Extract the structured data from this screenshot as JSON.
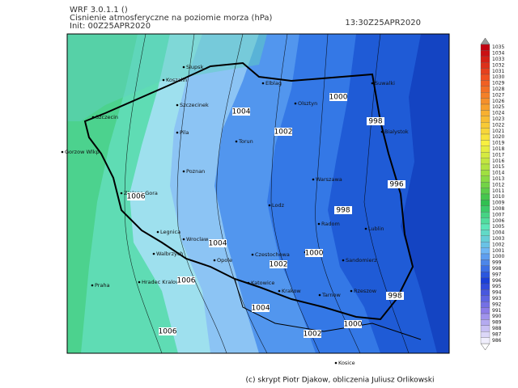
{
  "header": {
    "model": "WRF 3.0.1.1 ()",
    "title": "Cisnienie atmosferyczne na poziomie morza (hPa)",
    "init": "Init: 00Z25APR2020",
    "valid": "13:30Z25APR2020"
  },
  "colorbar": {
    "labels": [
      1035,
      1034,
      1033,
      1032,
      1031,
      1030,
      1029,
      1028,
      1027,
      1026,
      1025,
      1024,
      1023,
      1022,
      1021,
      1020,
      1019,
      1018,
      1017,
      1016,
      1015,
      1014,
      1013,
      1012,
      1011,
      1010,
      1009,
      1008,
      1007,
      1006,
      1005,
      1004,
      1003,
      1002,
      1001,
      1000,
      999,
      998,
      997,
      996,
      995,
      994,
      993,
      992,
      991,
      990,
      989,
      988,
      987,
      986
    ]
  },
  "cities": [
    "Slupsk",
    "Koszalin",
    "Elblag",
    "Suwalki",
    "Szczecin",
    "Szczecinek",
    "Olsztyn",
    "Bialystok",
    "Pila",
    "Torun",
    "Gorzow Wlkp",
    "Poznan",
    "Zielona Gora",
    "Warszawa",
    "Lodz",
    "Radom",
    "Lublin",
    "Legnica",
    "Wroclaw",
    "Walbrzych",
    "Opole",
    "Czestochowa",
    "Kielce",
    "Sandomierz",
    "Hradec Kralove",
    "Praha",
    "Katowice",
    "Krakow",
    "Tarnow",
    "Rzeszow",
    "Kosice"
  ],
  "isobar_labels": [
    1004,
    1002,
    1000,
    998,
    1006,
    998,
    996,
    1000,
    1002,
    1004,
    1006,
    1004,
    1000,
    998,
    1002,
    1006
  ],
  "footer": "(c) skrypt Piotr Djakow, obliczenia Juliusz Orlikowski"
}
